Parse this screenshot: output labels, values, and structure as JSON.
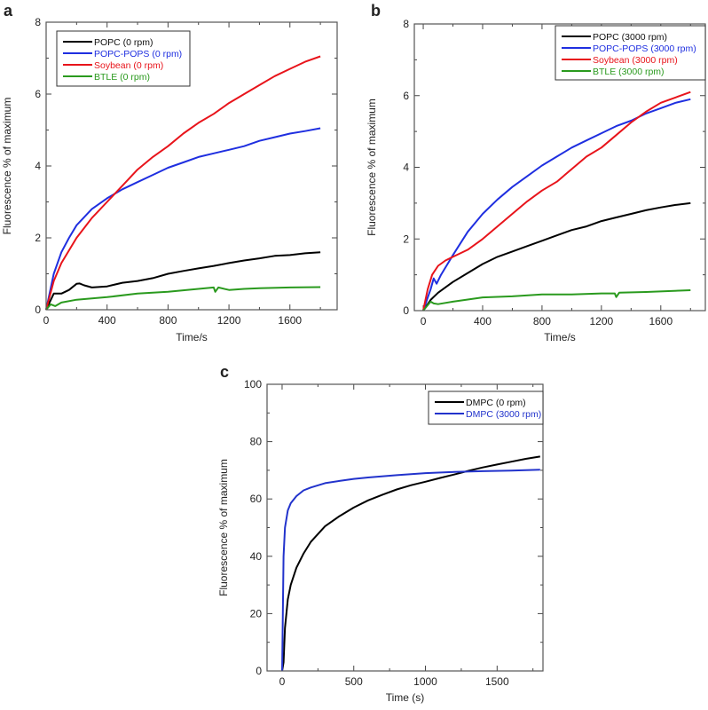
{
  "chart_data": [
    {
      "panel_label": "a",
      "type": "line",
      "title": "",
      "xlabel": "Time/s",
      "ylabel": "Fluorescence % of maximum",
      "xlim": [
        0,
        1910
      ],
      "ylim": [
        0,
        8
      ],
      "xticks": [
        0,
        400,
        800,
        1200,
        1600
      ],
      "xminor": 200,
      "yticks": [
        0,
        2,
        4,
        6,
        8
      ],
      "yminor": 1,
      "legend_position": "top-left",
      "series": [
        {
          "name": "POPC (0 rpm)",
          "color": "#000000",
          "x": [
            0,
            50,
            100,
            150,
            200,
            220,
            250,
            300,
            400,
            500,
            600,
            700,
            800,
            900,
            1000,
            1100,
            1200,
            1300,
            1400,
            1500,
            1600,
            1700,
            1800
          ],
          "y": [
            0,
            0.45,
            0.45,
            0.55,
            0.72,
            0.73,
            0.68,
            0.62,
            0.65,
            0.75,
            0.8,
            0.88,
            1.0,
            1.08,
            1.15,
            1.22,
            1.3,
            1.37,
            1.43,
            1.5,
            1.52,
            1.57,
            1.6
          ]
        },
        {
          "name": "POPC-POPS (0 rpm)",
          "color": "#1f2fe0",
          "x": [
            0,
            50,
            100,
            150,
            200,
            300,
            400,
            500,
            600,
            700,
            800,
            900,
            1000,
            1100,
            1200,
            1300,
            1400,
            1500,
            1600,
            1700,
            1800
          ],
          "y": [
            0,
            1.0,
            1.6,
            2.0,
            2.35,
            2.8,
            3.1,
            3.35,
            3.55,
            3.75,
            3.95,
            4.1,
            4.25,
            4.35,
            4.45,
            4.55,
            4.7,
            4.8,
            4.9,
            4.97,
            5.05
          ]
        },
        {
          "name": "Soybean (0 rpm)",
          "color": "#e8141b",
          "x": [
            0,
            50,
            100,
            200,
            300,
            400,
            500,
            600,
            700,
            800,
            900,
            1000,
            1100,
            1200,
            1300,
            1400,
            1500,
            1600,
            1700,
            1800
          ],
          "y": [
            0,
            0.8,
            1.3,
            2.0,
            2.55,
            3.0,
            3.45,
            3.9,
            4.25,
            4.55,
            4.9,
            5.2,
            5.45,
            5.75,
            6.0,
            6.25,
            6.5,
            6.7,
            6.9,
            7.05
          ]
        },
        {
          "name": "BTLE (0 rpm)",
          "color": "#2a9a1e",
          "x": [
            0,
            30,
            60,
            100,
            200,
            400,
            600,
            800,
            1000,
            1100,
            1110,
            1130,
            1200,
            1300,
            1400,
            1600,
            1800
          ],
          "y": [
            0,
            0.15,
            0.1,
            0.2,
            0.28,
            0.35,
            0.45,
            0.5,
            0.58,
            0.62,
            0.5,
            0.62,
            0.55,
            0.58,
            0.6,
            0.62,
            0.63
          ]
        }
      ]
    },
    {
      "panel_label": "b",
      "type": "line",
      "title": "",
      "xlabel": "Time/s",
      "ylabel": "Fluorescence % of maximum",
      "xlim": [
        -60,
        1900
      ],
      "ylim": [
        0,
        8
      ],
      "xticks": [
        0,
        400,
        800,
        1200,
        1600
      ],
      "xminor": 200,
      "yticks": [
        0,
        2,
        4,
        6,
        8
      ],
      "yminor": 1,
      "legend_position": "top-right",
      "series": [
        {
          "name": "POPC (3000 rpm)",
          "color": "#000000",
          "x": [
            0,
            50,
            100,
            200,
            300,
            400,
            500,
            600,
            700,
            800,
            900,
            1000,
            1100,
            1200,
            1300,
            1400,
            1500,
            1600,
            1700,
            1800
          ],
          "y": [
            0,
            0.3,
            0.5,
            0.8,
            1.05,
            1.3,
            1.5,
            1.65,
            1.8,
            1.95,
            2.1,
            2.25,
            2.35,
            2.5,
            2.6,
            2.7,
            2.8,
            2.88,
            2.95,
            3.0
          ]
        },
        {
          "name": "POPC-POPS (3000 rpm)",
          "color": "#1f2fe0",
          "x": [
            0,
            50,
            70,
            90,
            120,
            200,
            300,
            400,
            500,
            600,
            700,
            800,
            900,
            1000,
            1100,
            1200,
            1300,
            1400,
            1500,
            1600,
            1700,
            1800
          ],
          "y": [
            0,
            0.6,
            0.9,
            0.75,
            1.0,
            1.55,
            2.2,
            2.7,
            3.1,
            3.45,
            3.75,
            4.05,
            4.3,
            4.55,
            4.75,
            4.95,
            5.15,
            5.3,
            5.5,
            5.65,
            5.8,
            5.9
          ]
        },
        {
          "name": "Soybean (3000 rpm)",
          "color": "#e8141b",
          "x": [
            0,
            30,
            60,
            100,
            150,
            200,
            300,
            400,
            500,
            600,
            700,
            800,
            900,
            1000,
            1100,
            1200,
            1300,
            1400,
            1500,
            1600,
            1700,
            1800
          ],
          "y": [
            0,
            0.6,
            1.0,
            1.25,
            1.4,
            1.5,
            1.7,
            2.0,
            2.35,
            2.7,
            3.05,
            3.35,
            3.6,
            3.95,
            4.3,
            4.55,
            4.9,
            5.25,
            5.55,
            5.8,
            5.95,
            6.1
          ]
        },
        {
          "name": "BTLE (3000 rpm)",
          "color": "#2a9a1e",
          "x": [
            0,
            50,
            70,
            100,
            200,
            400,
            600,
            800,
            1000,
            1200,
            1290,
            1300,
            1320,
            1500,
            1800
          ],
          "y": [
            0,
            0.25,
            0.2,
            0.18,
            0.25,
            0.37,
            0.4,
            0.45,
            0.45,
            0.48,
            0.48,
            0.38,
            0.5,
            0.52,
            0.57
          ]
        }
      ]
    },
    {
      "panel_label": "c",
      "type": "line",
      "title": "",
      "xlabel": "Time (s)",
      "ylabel": "Fluorescence % of maximum",
      "xlim": [
        -105,
        1820
      ],
      "ylim": [
        0,
        100
      ],
      "xticks": [
        0,
        500,
        1000,
        1500
      ],
      "xminor": 250,
      "yticks": [
        0,
        20,
        40,
        60,
        80,
        100
      ],
      "yminor": 10,
      "legend_position": "top-right",
      "series": [
        {
          "name": "DMPC (0 rpm)",
          "color": "#000000",
          "x": [
            0,
            10,
            20,
            40,
            60,
            100,
            150,
            200,
            300,
            400,
            500,
            600,
            700,
            800,
            900,
            1000,
            1100,
            1200,
            1300,
            1400,
            1500,
            1600,
            1700,
            1800
          ],
          "y": [
            0,
            3,
            15,
            25,
            30,
            36,
            41,
            45,
            50.5,
            54,
            57,
            59.5,
            61.5,
            63.3,
            64.8,
            66,
            67.3,
            68.5,
            69.8,
            71,
            72,
            73,
            74,
            74.8
          ]
        },
        {
          "name": "DMPC (3000 rpm)",
          "color": "#2233cc",
          "x": [
            0,
            5,
            10,
            20,
            40,
            60,
            100,
            150,
            200,
            300,
            400,
            500,
            600,
            800,
            1000,
            1200,
            1400,
            1600,
            1800
          ],
          "y": [
            0,
            20,
            40,
            50,
            56,
            58.5,
            61,
            63,
            64,
            65.5,
            66.3,
            67,
            67.5,
            68.3,
            69,
            69.4,
            69.7,
            69.9,
            70.2
          ]
        }
      ]
    }
  ]
}
